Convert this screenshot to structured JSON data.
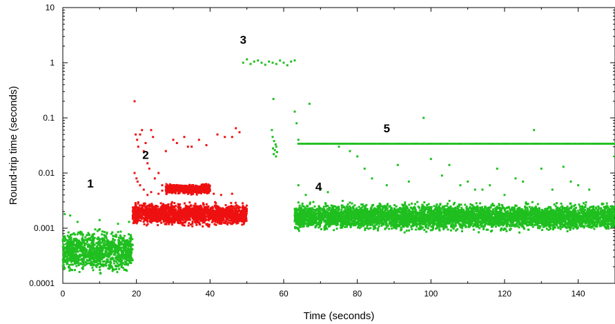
{
  "chart_data": {
    "type": "scatter",
    "title": "",
    "xlabel": "Time (seconds)",
    "ylabel": "Round-trip time (seconds)",
    "xlim": [
      0,
      150
    ],
    "ylim": [
      0.0001,
      10
    ],
    "yscale": "log",
    "x_ticks": [
      0,
      20,
      40,
      60,
      80,
      100,
      120,
      140
    ],
    "y_ticks": [
      0.0001,
      0.001,
      0.01,
      0.1,
      1,
      10
    ],
    "y_tick_labels": [
      "0.0001",
      "0.001",
      "0.01",
      "0.1",
      "1",
      "10"
    ],
    "grid": false,
    "legend": "none",
    "colors": {
      "green": "#1fbf1f",
      "red": "#ee1111"
    },
    "annotations": [
      {
        "text": "1",
        "x": 7.5,
        "y": 0.0055
      },
      {
        "text": "2",
        "x": 22.5,
        "y": 0.018
      },
      {
        "text": "3",
        "x": 49,
        "y": 2.2
      },
      {
        "text": "4",
        "x": 69.5,
        "y": 0.0048
      },
      {
        "text": "5",
        "x": 88,
        "y": 0.055
      }
    ],
    "series": [
      {
        "color": "green",
        "segments": [
          {
            "x_range": [
              0,
              19
            ],
            "y_range": [
              0.00013,
              0.0011
            ]
          },
          {
            "x_range": [
              63,
              150
            ],
            "y_range": [
              0.0008,
              0.0032
            ]
          }
        ],
        "points": [
          [
            0.5,
            0.0018
          ],
          [
            2,
            0.0017
          ],
          [
            4,
            0.0013
          ],
          [
            10,
            0.0014
          ],
          [
            15,
            0.0012
          ],
          [
            18,
            0.0013
          ],
          [
            19,
            0.0017
          ],
          [
            19.2,
            0.0019
          ],
          [
            49,
            1.0
          ],
          [
            50,
            1.15
          ],
          [
            51,
            0.95
          ],
          [
            52,
            1.05
          ],
          [
            53,
            1.1
          ],
          [
            54,
            1.0
          ],
          [
            55,
            0.92
          ],
          [
            56,
            1.05
          ],
          [
            57,
            1.0
          ],
          [
            58,
            0.95
          ],
          [
            59,
            1.1
          ],
          [
            60,
            1.0
          ],
          [
            61,
            0.9
          ],
          [
            62,
            1.05
          ],
          [
            63,
            1.1
          ],
          [
            57.2,
            0.22
          ],
          [
            56.8,
            0.06
          ],
          [
            57,
            0.045
          ],
          [
            57.4,
            0.038
          ],
          [
            57.8,
            0.033
          ],
          [
            58,
            0.03
          ],
          [
            57.1,
            0.028
          ],
          [
            57.6,
            0.026
          ],
          [
            58.2,
            0.024
          ],
          [
            57.3,
            0.022
          ],
          [
            57.9,
            0.02
          ],
          [
            63,
            0.13
          ],
          [
            63.5,
            0.08
          ],
          [
            64,
            0.04
          ],
          [
            67,
            0.18
          ],
          [
            64,
            0.006
          ],
          [
            66,
            0.004
          ],
          [
            70,
            0.005
          ],
          [
            72,
            0.0045
          ],
          [
            75,
            0.03
          ],
          [
            78,
            0.025
          ],
          [
            80,
            0.02
          ],
          [
            82,
            0.012
          ],
          [
            84,
            0.008
          ],
          [
            88,
            0.006
          ],
          [
            91,
            0.014
          ],
          [
            94,
            0.007
          ],
          [
            98,
            0.1
          ],
          [
            100,
            0.018
          ],
          [
            103,
            0.009
          ],
          [
            105,
            0.014
          ],
          [
            108,
            0.006
          ],
          [
            110,
            0.007
          ],
          [
            112,
            0.005
          ],
          [
            114,
            0.005
          ],
          [
            116,
            0.006
          ],
          [
            118,
            0.012
          ],
          [
            120,
            0.004
          ],
          [
            123,
            0.008
          ],
          [
            125,
            0.007
          ],
          [
            128,
            0.06
          ],
          [
            130,
            0.012
          ],
          [
            133,
            0.005
          ],
          [
            136,
            0.013
          ],
          [
            138,
            0.007
          ],
          [
            140,
            0.006
          ],
          [
            143,
            0.005
          ],
          [
            150,
            0.02
          ]
        ],
        "level_line": {
          "x_range": [
            64,
            150
          ],
          "y": 0.034
        }
      },
      {
        "color": "red",
        "segments": [
          {
            "x_range": [
              19,
              50
            ],
            "y_range": [
              0.001,
              0.0032
            ]
          },
          {
            "x_range": [
              28,
              40
            ],
            "y_range": [
              0.004,
              0.0065
            ]
          }
        ],
        "points": [
          [
            19.5,
            0.2
          ],
          [
            19.8,
            0.05
          ],
          [
            20.2,
            0.04
          ],
          [
            20.5,
            0.03
          ],
          [
            21,
            0.05
          ],
          [
            21.5,
            0.06
          ],
          [
            22,
            0.025
          ],
          [
            22.5,
            0.035
          ],
          [
            23,
            0.015
          ],
          [
            23.5,
            0.012
          ],
          [
            24,
            0.06
          ],
          [
            24.5,
            0.045
          ],
          [
            25,
            0.008
          ],
          [
            26,
            0.01
          ],
          [
            27,
            0.006
          ],
          [
            28,
            0.025
          ],
          [
            30,
            0.04
          ],
          [
            31,
            0.035
          ],
          [
            33,
            0.045
          ],
          [
            34,
            0.03
          ],
          [
            35,
            0.03
          ],
          [
            37,
            0.04
          ],
          [
            39,
            0.032
          ],
          [
            42,
            0.05
          ],
          [
            44,
            0.045
          ],
          [
            46,
            0.045
          ],
          [
            47,
            0.065
          ],
          [
            48,
            0.055
          ],
          [
            19.5,
            0.01
          ],
          [
            20,
            0.008
          ],
          [
            20.3,
            0.007
          ],
          [
            21,
            0.006
          ],
          [
            22,
            0.005
          ],
          [
            23,
            0.004
          ],
          [
            24,
            0.0045
          ],
          [
            26,
            0.0042
          ],
          [
            27,
            0.0048
          ],
          [
            41,
            0.0042
          ],
          [
            43,
            0.004
          ],
          [
            46,
            0.0042
          ]
        ]
      }
    ]
  }
}
